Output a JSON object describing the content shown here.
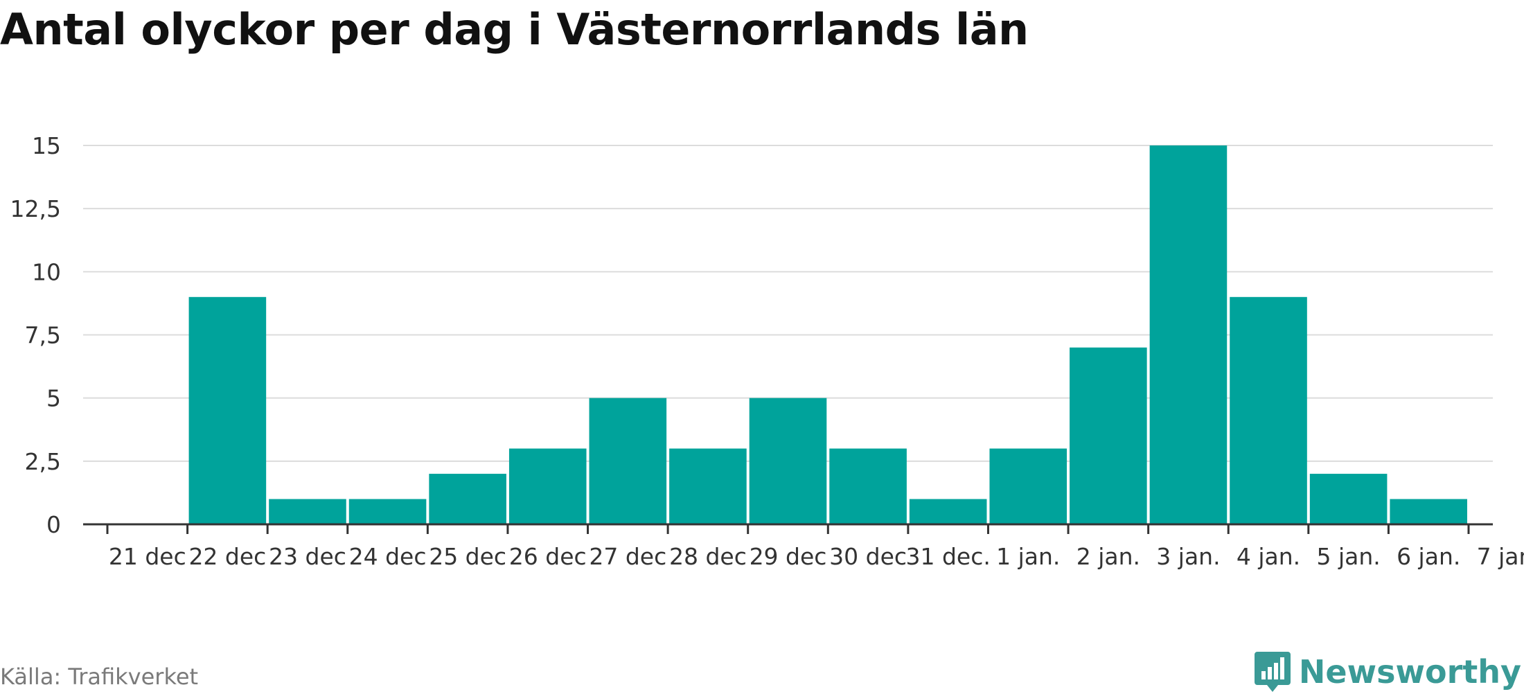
{
  "chart_data": {
    "type": "bar",
    "title": "Antal olyckor per dag i Västernorrlands län",
    "categories": [
      "21 dec",
      "22 dec",
      "23 dec",
      "24 dec",
      "25 dec",
      "26 dec",
      "27 dec",
      "28 dec",
      "29 dec",
      "30 dec",
      "31 dec.",
      "1 jan.",
      "2 jan.",
      "3 jan.",
      "4 jan.",
      "5 jan.",
      "6 jan.",
      "7 jan."
    ],
    "values": [
      0,
      9,
      1,
      1,
      2,
      3,
      5,
      3,
      5,
      3,
      1,
      3,
      7,
      15,
      9,
      2,
      1,
      0
    ],
    "yticks": [
      0,
      2.5,
      5,
      7.5,
      10,
      12.5,
      15
    ],
    "ytick_labels": [
      "0",
      "2,5",
      "5",
      "7,5",
      "10",
      "12,5",
      "15"
    ],
    "ylim": [
      0,
      15
    ],
    "grid": true,
    "bar_color": "#00a39b",
    "xlabel": "",
    "ylabel": ""
  },
  "source": "Källa: Trafikverket",
  "brand": {
    "name": "Newsworthy",
    "color": "#3a9a96",
    "icon": "bar-chart-icon"
  }
}
